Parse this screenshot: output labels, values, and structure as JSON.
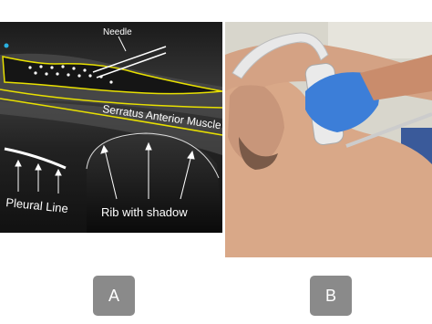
{
  "panel_a": {
    "needle_label": "Needle",
    "muscle_label": "Serratus Anterior Muscle",
    "pleural_label": "Pleural Line",
    "rib_label": "Rib with shadow"
  },
  "buttons": [
    "A",
    "B"
  ]
}
